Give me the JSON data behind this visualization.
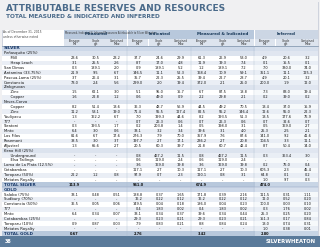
{
  "title": "ATTRIBUTABLE RESERVES AND RESOURCES",
  "subtitle": "TOTAL MEASURED & INDICATED AND INFERRED",
  "bg_color": "#f0f0f2",
  "title_color": "#4a6a8a",
  "subtitle_color": "#4a6a8a",
  "footer_text": "SILVERWHEATON",
  "page_num": "38",
  "group_labels": [
    "Measured",
    "Indicated",
    "Measured & Indicated",
    "Inferred"
  ],
  "sub_col_labels": [
    "Tonnage",
    "Grade",
    "Contained"
  ],
  "sub_col_units": [
    "Mt",
    "g/t",
    "Moz"
  ],
  "date_note": "As of December 31, 2015\nunless otherwise noted",
  "attrib_note": "Measured, Indicated & Inferred Resources Attributable to Silver Wheaton",
  "silver_section": "SILVER",
  "gold_section": "GOLD",
  "rows_silver": [
    {
      "name": "Peñasquito (25%)",
      "parent": true,
      "m": [
        "",
        "",
        ""
      ],
      "i": [
        "",
        "",
        ""
      ],
      "mi": [
        "",
        "",
        ""
      ],
      "inf": [
        "",
        "",
        ""
      ]
    },
    {
      "name": "  Mill",
      "indent": 1,
      "m": [
        "23.6",
        "30.5",
        "23.2"
      ],
      "i": [
        "37.7",
        "24.6",
        "29.9"
      ],
      "mi": [
        "61.3",
        "26.9",
        "53.0"
      ],
      "inf": [
        "4.9",
        "20.6",
        "3.2"
      ]
    },
    {
      "name": "  Heap Leach",
      "indent": 1,
      "m": [
        "3.1",
        "25.5",
        "2.6"
      ],
      "i": [
        "8.7",
        "17.0",
        "4.8"
      ],
      "mi": [
        "11.9",
        "19.3",
        "7.4"
      ],
      "inf": [
        "0.1",
        "15.5",
        "0.1"
      ]
    },
    {
      "name": "San Dimas",
      "m": [
        "0.3",
        "189.1",
        "2.0"
      ],
      "i": [
        "0.9",
        "189.1",
        "5.2"
      ],
      "mi": [
        "1.2",
        "189.1",
        "7.2"
      ],
      "inf": [
        "7.0",
        "330.0",
        "74.0"
      ]
    },
    {
      "name": "Antamina (33.75%)",
      "m": [
        "21.9",
        "9.5",
        "6.7"
      ],
      "i": [
        "146.5",
        "11.1",
        "52.3"
      ],
      "mi": [
        "168.4",
        "10.9",
        "59.1"
      ],
      "inf": [
        "351.1",
        "11.1",
        "125.3"
      ]
    },
    {
      "name": "Pascua-Lama (25%)",
      "m": [
        "3.7",
        "26.4",
        "3.1"
      ],
      "i": [
        "35.7",
        "22.3",
        "25.5"
      ],
      "mi": [
        "39.4",
        "22.7",
        "28.7"
      ],
      "inf": [
        "4.9",
        "20.1",
        "3.2"
      ]
    },
    {
      "name": "Constancia",
      "m": [
        "73.0",
        "2.4",
        "5.6"
      ],
      "i": [
        "299.0",
        "2.0",
        "19.4"
      ],
      "mi": [
        "372.0",
        "2.1",
        "25.0"
      ],
      "inf": [
        "200.0",
        "1.9",
        "12.0"
      ]
    },
    {
      "name": "Zinkgruvan",
      "parent": true,
      "m": [
        "",
        "",
        ""
      ],
      "i": [
        "",
        "",
        ""
      ],
      "mi": [
        "",
        "",
        ""
      ],
      "inf": [
        "",
        "",
        ""
      ]
    },
    {
      "name": "  Zinc",
      "indent": 1,
      "m": [
        "1.5",
        "62.1",
        "3.0"
      ],
      "i": [
        "5.1",
        "95.0",
        "15.7"
      ],
      "mi": [
        "6.7",
        "87.5",
        "18.8"
      ],
      "inf": [
        "7.3",
        "83.0",
        "19.4"
      ]
    },
    {
      "name": "  Copper",
      "indent": 1,
      "m": [
        "1.6",
        "22.8",
        "1.2"
      ],
      "i": [
        "0.6",
        "49.0",
        "0.9"
      ],
      "mi": [
        "2.2",
        "29.8",
        "2.1"
      ],
      "inf": [
        "0.2",
        "39.0",
        "0.2"
      ]
    },
    {
      "name": "Neves-Corvo",
      "parent": true,
      "m": [
        "",
        "",
        ""
      ],
      "i": [
        "",
        "",
        ""
      ],
      "mi": [
        "",
        "",
        ""
      ],
      "inf": [
        "",
        "",
        ""
      ]
    },
    {
      "name": "  Copper",
      "indent": 1,
      "m": [
        "8.2",
        "51.4",
        "13.6"
      ],
      "i": [
        "36.3",
        "48.7",
        "56.9"
      ],
      "mi": [
        "44.5",
        "49.2",
        "70.5"
      ],
      "inf": [
        "13.4",
        "37.0",
        "15.9"
      ]
    },
    {
      "name": "  Zinc",
      "indent": 1,
      "m": [
        "11.2",
        "53.1",
        "19.0"
      ],
      "i": [
        "71.4",
        "55.5",
        "127.4"
      ],
      "mi": [
        "82.5",
        "55.2",
        "146.4"
      ],
      "inf": [
        "12.6",
        "55.0",
        "22.3"
      ]
    },
    {
      "name": "Yauliyacu",
      "m": [
        "1.3",
        "162.2",
        "6.7"
      ],
      "i": [
        "7.0",
        "199.3",
        "44.6"
      ],
      "mi": [
        "8.2",
        "193.5",
        "51.3"
      ],
      "inf": [
        "13.5",
        "177.6",
        "76.9"
      ]
    },
    {
      "name": "777",
      "m": [
        "-",
        "-",
        "-"
      ],
      "i": [
        "0.7",
        "26.3",
        "0.6"
      ],
      "mi": [
        "0.7",
        "26.3",
        "0.6"
      ],
      "inf": [
        "0.7",
        "32.6",
        "0.7"
      ]
    },
    {
      "name": "Stratoni",
      "m": [
        "0.3",
        "193.5",
        "1.7"
      ],
      "i": [
        "0.2",
        "203.8",
        "1.4"
      ],
      "mi": [
        "0.5",
        "198.0",
        "3.1"
      ],
      "inf": [
        "0.5",
        "169.0",
        "2.7"
      ]
    },
    {
      "name": "Minto",
      "m": [
        "6.4",
        "3.0",
        "0.6"
      ],
      "i": [
        "33.1",
        "3.2",
        "3.4"
      ],
      "mi": [
        "39.6",
        "3.1",
        "4.0"
      ],
      "inf": [
        "25.3",
        "2.5",
        "2.1"
      ]
    },
    {
      "name": "Los Filos",
      "m": [
        "81.6",
        "6.7",
        "17.6"
      ],
      "i": [
        "276.3",
        "7.9",
        "70.0"
      ],
      "mi": [
        "357.9",
        "7.6",
        "87.6"
      ],
      "inf": [
        "141.0",
        "9.2",
        "41.6"
      ]
    },
    {
      "name": "Rosemont",
      "m": [
        "38.5",
        "3.0",
        "3.7"
      ],
      "i": [
        "197.7",
        "2.7",
        "17.1"
      ],
      "mi": [
        "236.2",
        "2.7",
        "20.8"
      ],
      "inf": [
        "104.5",
        "3.3",
        "11.1"
      ]
    },
    {
      "name": "Aljustrel",
      "m": [
        "1.3",
        "65.6",
        "2.7"
      ],
      "i": [
        "20.5",
        "60.3",
        "39.7"
      ],
      "mi": [
        "21.8",
        "60.7",
        "42.4"
      ],
      "inf": [
        "8.7",
        "50.4",
        "14.0"
      ]
    },
    {
      "name": "Keno Hill (25%)",
      "parent": true,
      "m": [
        "",
        "",
        ""
      ],
      "i": [
        "",
        "",
        ""
      ],
      "mi": [
        "",
        "",
        ""
      ],
      "inf": [
        "",
        "",
        ""
      ]
    },
    {
      "name": "  Underground",
      "indent": 1,
      "m": [
        "-",
        "-",
        "-"
      ],
      "i": [
        "0.8",
        "467.2",
        "11.5"
      ],
      "mi": [
        "0.8",
        "467.2",
        "11.5"
      ],
      "inf": [
        "0.3",
        "363.4",
        "3.0"
      ]
    },
    {
      "name": "  Elsa Tailings",
      "indent": 1,
      "m": [
        "-",
        "-",
        "-"
      ],
      "i": [
        "0.6",
        "119.0",
        "2.4"
      ],
      "mi": [
        "0.6",
        "119.0",
        "2.4"
      ],
      "inf": [
        "-",
        "-",
        "-"
      ]
    },
    {
      "name": "Loma de La Plata (12.5%)",
      "m": [
        "-",
        "-",
        "-"
      ],
      "i": [
        "3.6",
        "169.0",
        "19.8"
      ],
      "mi": [
        "3.6",
        "169.0",
        "19.8"
      ],
      "inf": [
        "0.2",
        "76.0",
        "0.4"
      ]
    },
    {
      "name": "Cotabambas",
      "m": [
        "-",
        "-",
        "-"
      ],
      "i": [
        "117.1",
        "2.7",
        "10.3"
      ],
      "mi": [
        "117.1",
        "2.7",
        "10.3"
      ],
      "inf": [
        "605.3",
        "2.3",
        "45.4"
      ]
    },
    {
      "name": "Toroparu (50%)",
      "m": [
        "22.2",
        "1.2",
        "0.8"
      ],
      "i": [
        "97.9",
        "0.7",
        "2.3"
      ],
      "mi": [
        "120.1",
        "0.8",
        "3.1"
      ],
      "inf": [
        "64.8",
        "0.1",
        "0.2"
      ]
    },
    {
      "name": "Metates Royalty",
      "m": [
        "-",
        "-",
        "-"
      ],
      "i": [
        "-",
        "-",
        "-"
      ],
      "mi": [
        "-",
        "-",
        "-"
      ],
      "inf": [
        "1.0",
        "9.7",
        "0.3"
      ]
    },
    {
      "name": "TOTAL SILVER",
      "total": true,
      "m": [
        "113.9",
        "",
        ""
      ],
      "i": [
        "561.0",
        "",
        ""
      ],
      "mi": [
        "674.9",
        "",
        ""
      ],
      "inf": [
        "474.0",
        "",
        ""
      ]
    }
  ],
  "rows_gold": [
    {
      "name": "Salobo (75%)",
      "m": [
        "33.1",
        "0.48",
        "0.51"
      ],
      "i": [
        "138.8",
        "0.37",
        "1.65"
      ],
      "mi": [
        "171.8",
        "0.39",
        "2.16"
      ],
      "inf": [
        "111.5",
        "0.31",
        "1.11"
      ]
    },
    {
      "name": "Sudbury (70%)",
      "m": [
        "-",
        "-",
        "-"
      ],
      "i": [
        "16.2",
        "0.22",
        "0.12"
      ],
      "mi": [
        "16.2",
        "0.22",
        "0.12"
      ],
      "inf": [
        "12.0",
        "0.52",
        "0.20"
      ]
    },
    {
      "name": "Constancia (50%)",
      "m": [
        "36.5",
        "0.05",
        "0.06"
      ],
      "i": [
        "149.5",
        "0.04",
        "0.18"
      ],
      "mi": [
        "186.0",
        "0.04",
        "0.23"
      ],
      "inf": [
        "100.0",
        "0.03",
        "0.10"
      ]
    },
    {
      "name": "777",
      "m": [
        "-",
        "-",
        "-"
      ],
      "i": [
        "0.4",
        "1.83",
        "0.02"
      ],
      "mi": [
        "0.4",
        "1.83",
        "0.02"
      ],
      "inf": [
        "0.3",
        "1.76",
        "0.02"
      ]
    },
    {
      "name": "Minto",
      "m": [
        "6.4",
        "0.34",
        "0.07"
      ],
      "i": [
        "33.1",
        "0.34",
        "0.37"
      ],
      "mi": [
        "39.6",
        "0.34",
        "0.44"
      ],
      "inf": [
        "25.3",
        "0.25",
        "0.20"
      ]
    },
    {
      "name": "Cotabambas (25%)",
      "m": [
        "-",
        "-",
        "-"
      ],
      "i": [
        "29.3",
        "0.23",
        "0.21"
      ],
      "mi": [
        "29.3",
        "0.23",
        "0.21"
      ],
      "inf": [
        "151.3",
        "0.17",
        "0.84"
      ]
    },
    {
      "name": "Toroparu (10%)",
      "m": [
        "0.9",
        "0.87",
        "0.03"
      ],
      "i": [
        "7.9",
        "0.83",
        "0.21"
      ],
      "mi": [
        "8.8",
        "0.84",
        "0.24"
      ],
      "inf": [
        "13.0",
        "0.74",
        "0.31"
      ]
    },
    {
      "name": "Metates Royalty",
      "m": [
        "-",
        "-",
        "-"
      ],
      "i": [
        "-",
        "-",
        "-"
      ],
      "mi": [
        "-",
        "-",
        "-"
      ],
      "inf": [
        "1.0",
        "0.38",
        "0.01"
      ]
    },
    {
      "name": "TOTAL GOLD",
      "total": true,
      "m": [
        "0.67",
        "",
        ""
      ],
      "i": [
        "2.76",
        "",
        ""
      ],
      "mi": [
        "3.42",
        "",
        ""
      ],
      "inf": [
        "2.80",
        "",
        ""
      ]
    }
  ]
}
